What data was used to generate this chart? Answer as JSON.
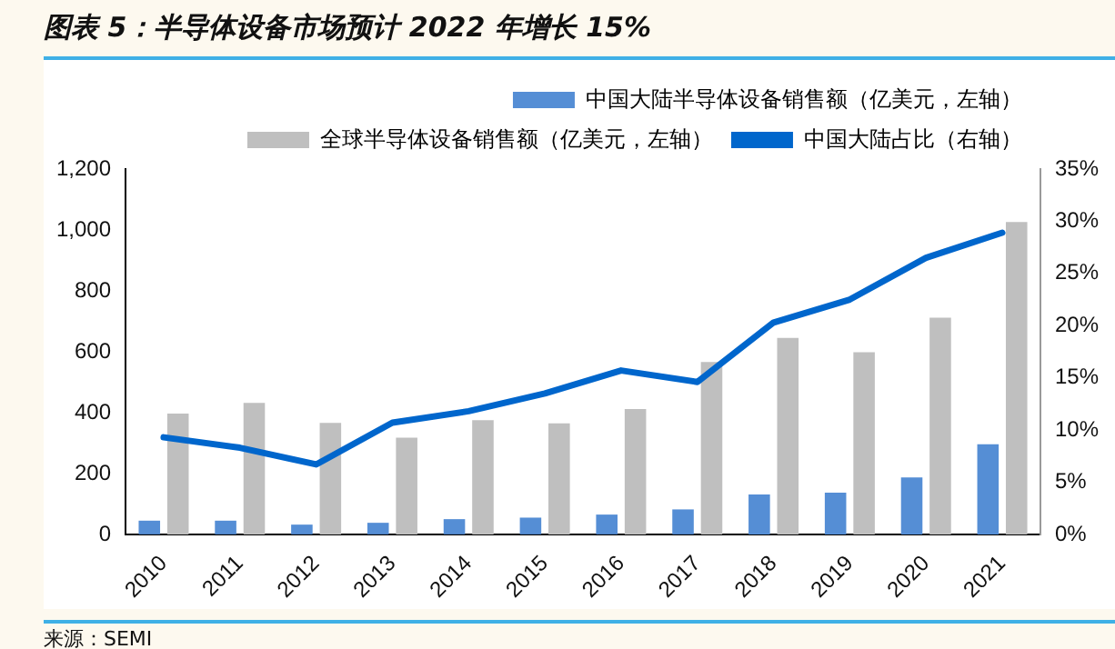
{
  "chart_data": {
    "type": "bar",
    "title": "图表 5：半导体设备市场预计 2022 年增长 15%",
    "categories": [
      "2010",
      "2011",
      "2012",
      "2013",
      "2014",
      "2015",
      "2016",
      "2017",
      "2018",
      "2019",
      "2020",
      "2021"
    ],
    "series": [
      {
        "name": "中国大陆半导体设备销售额（亿美元，左轴）",
        "color": "#558ed5",
        "values": [
          45,
          45,
          32,
          38,
          50,
          55,
          65,
          82,
          131,
          137,
          187,
          296
        ]
      },
      {
        "name": "全球半导体设备销售额（亿美元，左轴）",
        "color": "#bfbfbf",
        "values": [
          397,
          432,
          366,
          318,
          375,
          365,
          412,
          566,
          645,
          598,
          712,
          1026
        ]
      },
      {
        "name": "中国大陆占比（右轴）",
        "type": "line",
        "axis": "y2",
        "color": "#0066cc",
        "values": [
          9.3,
          8.3,
          6.7,
          10.7,
          11.8,
          13.5,
          15.7,
          14.6,
          20.3,
          22.5,
          26.5,
          28.9
        ]
      }
    ],
    "ylim": [
      0,
      1200
    ],
    "yticks": [
      0,
      {
        "value": 200,
        "label": "200"
      },
      {
        "value": 400,
        "label": "400"
      },
      {
        "value": 600,
        "label": "600"
      },
      {
        "value": 800,
        "label": "800"
      },
      {
        "value": 1000,
        "label": "1,000"
      },
      {
        "value": 1200,
        "label": "1,200"
      }
    ],
    "y2lim": [
      0,
      35
    ],
    "y2ticks": [
      {
        "value": 0,
        "label": "0%"
      },
      {
        "value": 5,
        "label": "5%"
      },
      {
        "value": 10,
        "label": "10%"
      },
      {
        "value": 15,
        "label": "15%"
      },
      {
        "value": 20,
        "label": "20%"
      },
      {
        "value": 25,
        "label": "25%"
      },
      {
        "value": 30,
        "label": "30%"
      },
      {
        "value": 35,
        "label": "35%"
      }
    ],
    "legend": "top right",
    "grid": false,
    "marker": "none",
    "annotations": [
      "来源：SEMI"
    ]
  }
}
